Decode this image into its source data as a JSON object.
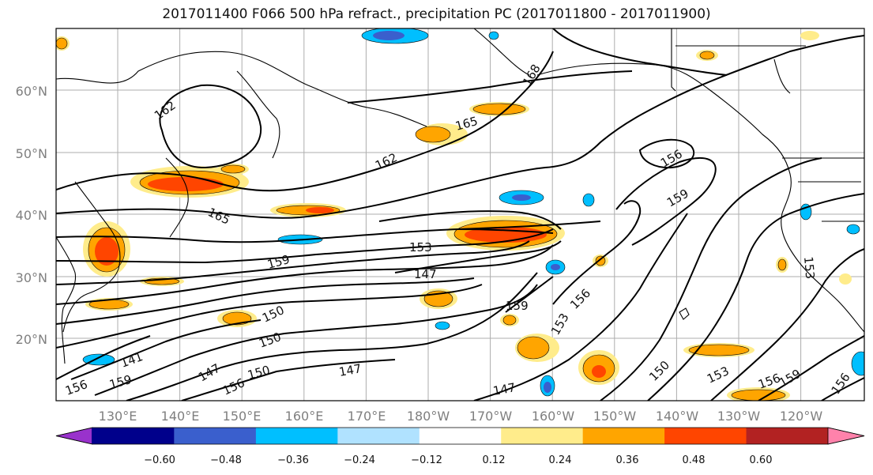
{
  "title": "2017011400 F066 500 hPa refract., precipitation PC (2017011800 - 2017011900)",
  "lat_labels": [
    "60°N",
    "50°N",
    "40°N",
    "30°N",
    "20°N"
  ],
  "lon_labels": [
    "130°E",
    "140°E",
    "150°E",
    "160°E",
    "170°E",
    "180°W",
    "170°W",
    "160°W",
    "150°W",
    "140°W",
    "130°W",
    "120°W"
  ],
  "contour_labels": [
    "162",
    "165",
    "162",
    "165",
    "168",
    "156",
    "159",
    "159",
    "153",
    "147",
    "150",
    "150",
    "147",
    "150",
    "147",
    "147",
    "159",
    "156",
    "153",
    "150",
    "153",
    "156",
    "159",
    "156",
    "153",
    "141",
    "156",
    "159",
    "156"
  ],
  "colorbar": {
    "colors": [
      "#9932cc",
      "#00008b",
      "#3a5fcd",
      "#00bfff",
      "#b0e2ff",
      "#ffffff",
      "#ffec8b",
      "#ffa500",
      "#ff4500",
      "#b22222",
      "#ff82ab"
    ],
    "ticks": [
      "−0.60",
      "−0.48",
      "−0.36",
      "−0.24",
      "−0.12",
      "0.12",
      "0.24",
      "0.36",
      "0.48",
      "0.60"
    ]
  }
}
